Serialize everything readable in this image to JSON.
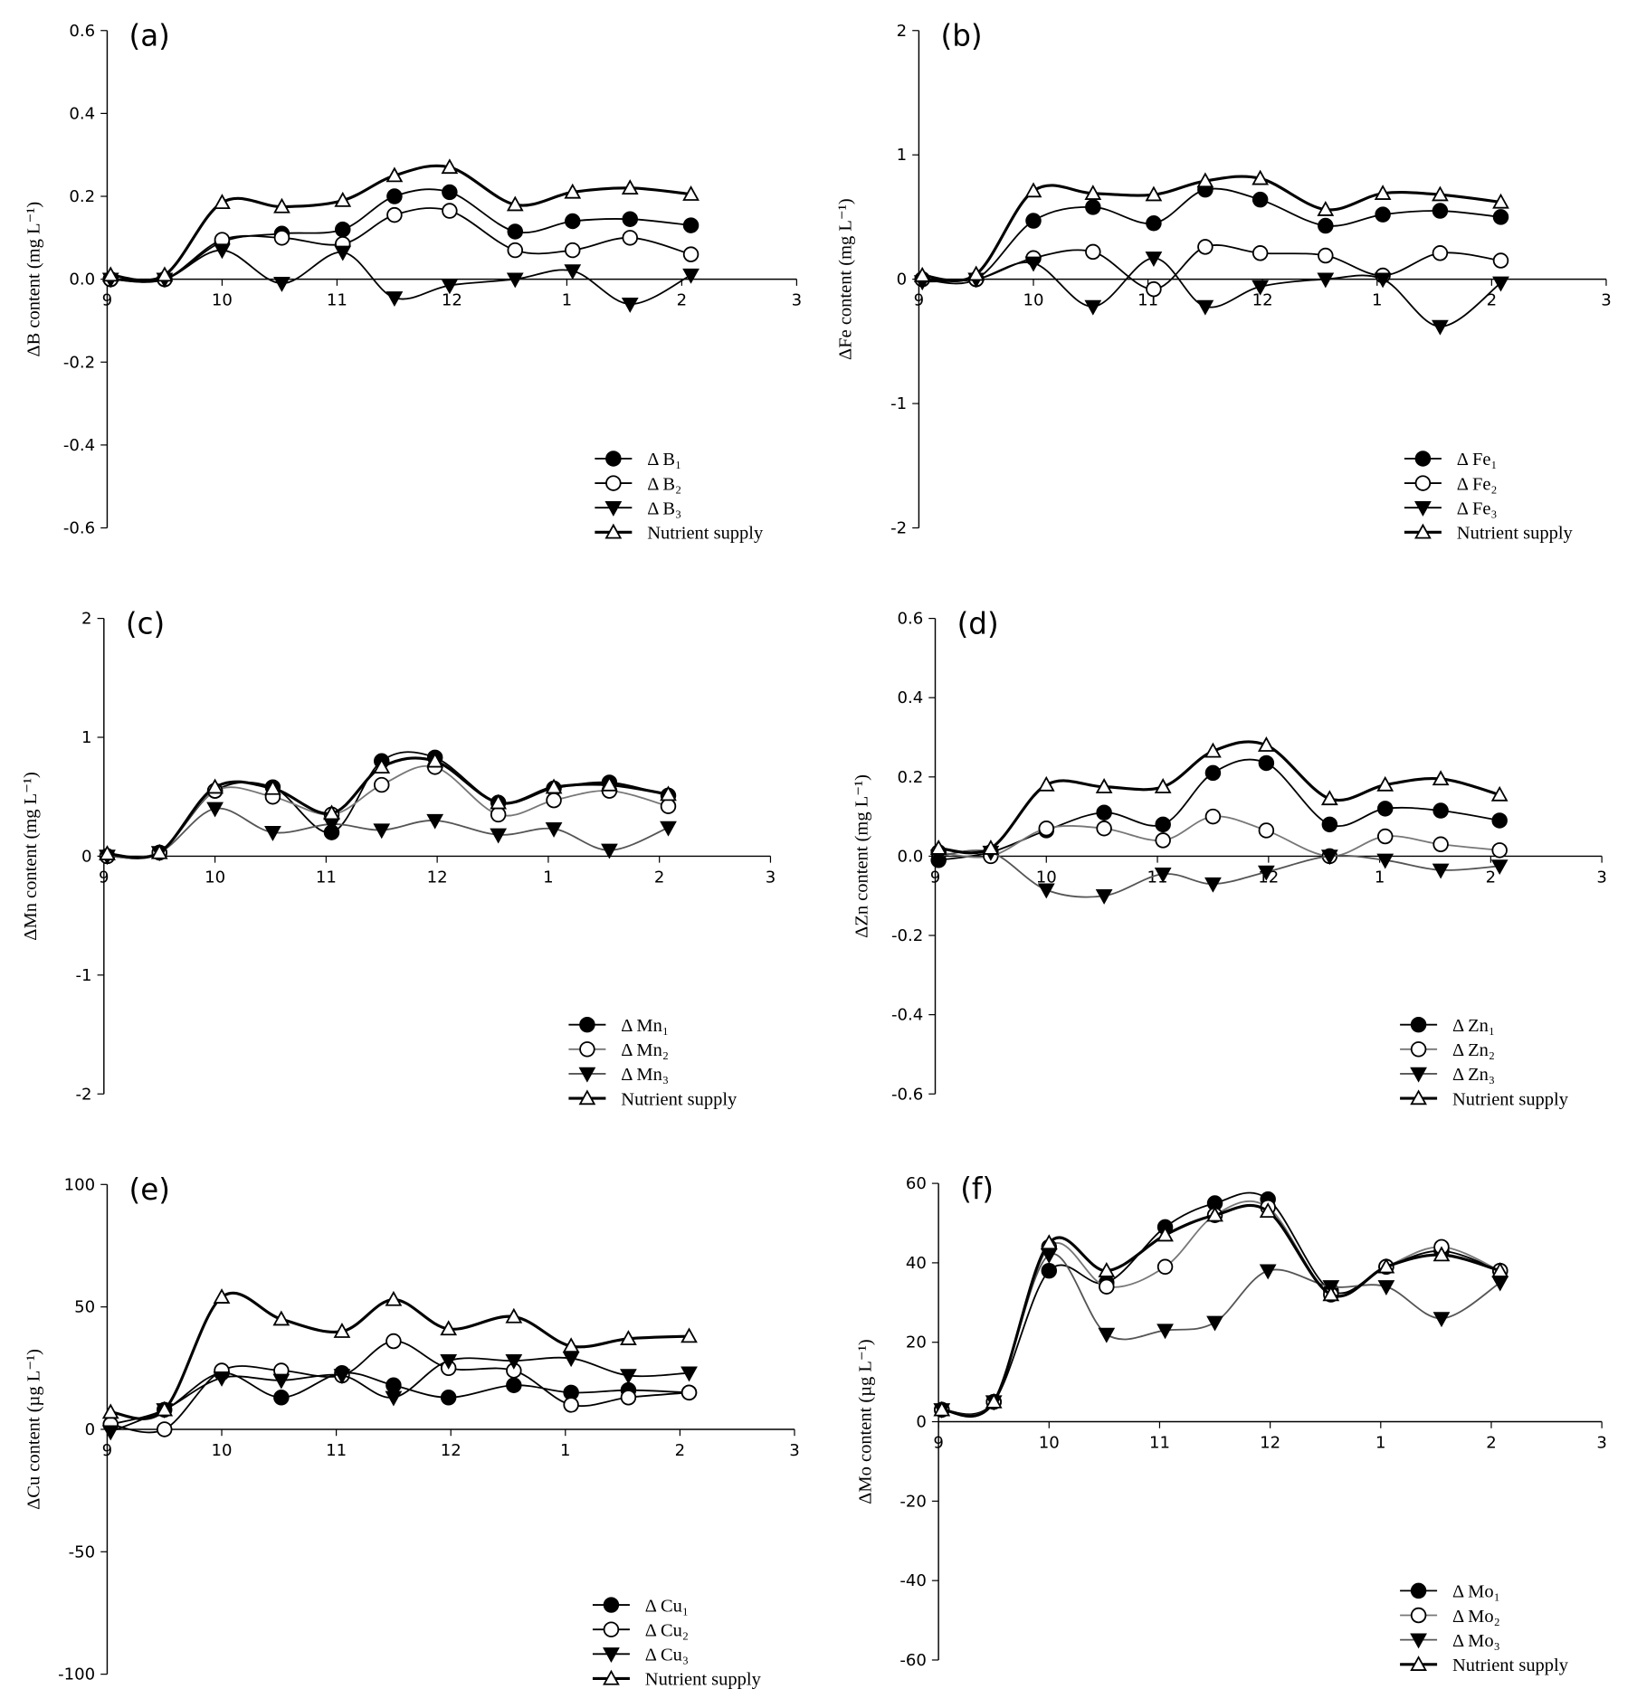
{
  "chart_data": [
    {
      "type": "line",
      "title": "(a)",
      "y_label": "ΔB content (mg L⁻¹)",
      "legend": "lower right",
      "x": [
        9.03,
        9.5,
        10.0,
        10.52,
        11.05,
        11.5,
        11.98,
        12.55,
        13.05,
        13.55,
        14.08
      ],
      "xlim": [
        9,
        15
      ],
      "xticks": [
        9,
        10,
        11,
        12,
        {
          "value": 13,
          "label": "1"
        },
        {
          "value": 14,
          "label": "2"
        },
        {
          "value": 15,
          "label": "3"
        }
      ],
      "ylim": [
        -0.6,
        0.6
      ],
      "yticks": [
        -0.6,
        -0.4,
        -0.2,
        {
          "value": 0,
          "label": "0.0"
        },
        0.2,
        0.4,
        0.6
      ],
      "series": [
        {
          "name": "Δ B₁",
          "color": "#000000",
          "marker": "filled-circle",
          "values": [
            0,
            0,
            0.09,
            0.11,
            0.12,
            0.2,
            0.21,
            0.115,
            0.14,
            0.145,
            0.13
          ]
        },
        {
          "name": "Δ B₂",
          "color": "#000000",
          "marker": "open-circle",
          "values": [
            0,
            0,
            0.095,
            0.1,
            0.085,
            0.155,
            0.165,
            0.07,
            0.07,
            0.1,
            0.06
          ]
        },
        {
          "name": "Δ B₃",
          "color": "#000000",
          "marker": "filled-triangle-down",
          "values": [
            0,
            0,
            0.07,
            -0.01,
            0.065,
            -0.045,
            -0.015,
            0,
            0.02,
            -0.06,
            0.01
          ]
        },
        {
          "name": "Nutrient supply",
          "color": "#000000",
          "marker": "open-triangle-up",
          "values": [
            0.01,
            0.01,
            0.185,
            0.175,
            0.19,
            0.25,
            0.27,
            0.18,
            0.21,
            0.22,
            0.205
          ]
        }
      ]
    },
    {
      "type": "line",
      "title": "(b)",
      "y_label": "ΔFe content (mg L⁻¹)",
      "legend": "lower right",
      "x": [
        9.03,
        9.5,
        10.0,
        10.52,
        11.05,
        11.5,
        11.98,
        12.55,
        13.05,
        13.55,
        14.08
      ],
      "xlim": [
        9,
        15
      ],
      "xticks": [
        9,
        10,
        11,
        12,
        {
          "value": 13,
          "label": "1"
        },
        {
          "value": 14,
          "label": "2"
        },
        {
          "value": 15,
          "label": "3"
        }
      ],
      "ylim": [
        -2,
        2
      ],
      "yticks": [
        -2,
        -1,
        0,
        1,
        2
      ],
      "series": [
        {
          "name": "Δ Fe₁",
          "color": "#000000",
          "marker": "filled-circle",
          "values": [
            0,
            0,
            0.47,
            0.58,
            0.45,
            0.72,
            0.64,
            0.43,
            0.52,
            0.55,
            0.5
          ]
        },
        {
          "name": "Δ Fe₂",
          "color": "#000000",
          "marker": "open-circle",
          "values": [
            0,
            0,
            0.17,
            0.22,
            -0.08,
            0.26,
            0.21,
            0.19,
            0.03,
            0.21,
            0.15
          ]
        },
        {
          "name": "Δ Fe₃",
          "color": "#000000",
          "marker": "filled-triangle-down",
          "values": [
            -0.02,
            0,
            0.13,
            -0.22,
            0.17,
            -0.22,
            -0.06,
            0,
            0,
            -0.38,
            -0.03
          ]
        },
        {
          "name": "Nutrient supply",
          "color": "#000000",
          "marker": "open-triangle-up",
          "values": [
            0.03,
            0.04,
            0.71,
            0.69,
            0.68,
            0.79,
            0.81,
            0.56,
            0.69,
            0.68,
            0.62
          ]
        }
      ]
    },
    {
      "type": "line",
      "title": "(c)",
      "y_label": "ΔMn content (mg L⁻¹)",
      "legend": "lower right",
      "x": [
        9.03,
        9.5,
        10.0,
        10.52,
        11.05,
        11.5,
        11.98,
        12.55,
        13.05,
        13.55,
        14.08
      ],
      "xlim": [
        9,
        15
      ],
      "xticks": [
        9,
        10,
        11,
        12,
        {
          "value": 13,
          "label": "1"
        },
        {
          "value": 14,
          "label": "2"
        },
        {
          "value": 15,
          "label": "3"
        }
      ],
      "ylim": [
        -2,
        2
      ],
      "yticks": [
        -2,
        -1,
        0,
        1,
        2
      ],
      "series": [
        {
          "name": "Δ Mn₁",
          "color": "#000000",
          "marker": "filled-circle",
          "values": [
            0,
            0.03,
            0.55,
            0.58,
            0.2,
            0.8,
            0.83,
            0.45,
            0.57,
            0.62,
            0.51
          ]
        },
        {
          "name": "Δ Mn₂",
          "color": "#777777",
          "marker": "open-circle",
          "values": [
            0,
            0.03,
            0.55,
            0.5,
            0.35,
            0.6,
            0.75,
            0.35,
            0.47,
            0.55,
            0.42
          ]
        },
        {
          "name": "Δ Mn₃",
          "color": "#555555",
          "marker": "filled-triangle-down",
          "values": [
            0,
            0.03,
            0.4,
            0.2,
            0.27,
            0.22,
            0.3,
            0.18,
            0.23,
            0.05,
            0.24
          ]
        },
        {
          "name": "Nutrient supply",
          "color": "#000000",
          "marker": "open-triangle-up",
          "values": [
            0.02,
            0.03,
            0.58,
            0.57,
            0.36,
            0.75,
            0.8,
            0.45,
            0.58,
            0.6,
            0.52
          ]
        }
      ]
    },
    {
      "type": "line",
      "title": "(d)",
      "y_label": "ΔZn content (mg L⁻¹)",
      "legend": "lower right",
      "x": [
        9.03,
        9.5,
        10.0,
        10.52,
        11.05,
        11.5,
        11.98,
        12.55,
        13.05,
        13.55,
        14.08
      ],
      "xlim": [
        9,
        15
      ],
      "xticks": [
        9,
        10,
        11,
        12,
        {
          "value": 13,
          "label": "1"
        },
        {
          "value": 14,
          "label": "2"
        },
        {
          "value": 15,
          "label": "3"
        }
      ],
      "ylim": [
        -0.6,
        0.6
      ],
      "yticks": [
        -0.6,
        -0.4,
        -0.2,
        {
          "value": 0,
          "label": "0.0"
        },
        0.2,
        0.4,
        0.6
      ],
      "series": [
        {
          "name": "Δ Zn₁",
          "color": "#000000",
          "marker": "filled-circle",
          "values": [
            -0.01,
            0.01,
            0.065,
            0.11,
            0.08,
            0.21,
            0.235,
            0.08,
            0.12,
            0.115,
            0.09
          ]
        },
        {
          "name": "Δ Zn₂",
          "color": "#777777",
          "marker": "open-circle",
          "values": [
            0.01,
            0,
            0.07,
            0.07,
            0.04,
            0.1,
            0.065,
            0,
            0.05,
            0.03,
            0.015
          ]
        },
        {
          "name": "Δ Zn₃",
          "color": "#555555",
          "marker": "filled-triangle-down",
          "values": [
            0,
            0.01,
            -0.085,
            -0.1,
            -0.045,
            -0.07,
            -0.04,
            0,
            -0.01,
            -0.035,
            -0.025
          ]
        },
        {
          "name": "Nutrient supply",
          "color": "#000000",
          "marker": "open-triangle-up",
          "values": [
            0.02,
            0.02,
            0.18,
            0.175,
            0.175,
            0.265,
            0.28,
            0.145,
            0.18,
            0.195,
            0.155
          ]
        }
      ]
    },
    {
      "type": "line",
      "title": "(e)",
      "y_label": "ΔCu content (µg L⁻¹)",
      "legend": "lower right",
      "x": [
        9.03,
        9.5,
        10.0,
        10.52,
        11.05,
        11.5,
        11.98,
        12.55,
        13.05,
        13.55,
        14.08
      ],
      "xlim": [
        9,
        15
      ],
      "xticks": [
        9,
        10,
        11,
        12,
        {
          "value": 13,
          "label": "1"
        },
        {
          "value": 14,
          "label": "2"
        },
        {
          "value": 15,
          "label": "3"
        }
      ],
      "ylim": [
        -100,
        100
      ],
      "yticks": [
        -100,
        -50,
        0,
        50,
        100
      ],
      "series": [
        {
          "name": "Δ Cu₁",
          "color": "#000000",
          "marker": "filled-circle",
          "values": [
            2,
            8,
            23,
            13,
            23,
            18,
            13,
            18,
            15,
            16,
            15
          ]
        },
        {
          "name": "Δ Cu₂",
          "color": "#000000",
          "marker": "open-circle",
          "values": [
            2,
            0,
            24,
            24,
            22,
            36,
            25,
            24,
            10,
            13,
            15
          ]
        },
        {
          "name": "Δ Cu₃",
          "color": "#000000",
          "marker": "filled-triangle-down",
          "values": [
            -1,
            8,
            21,
            20,
            22,
            13,
            28,
            28,
            29,
            22,
            23
          ]
        },
        {
          "name": "Nutrient supply",
          "color": "#000000",
          "marker": "open-triangle-up",
          "values": [
            7,
            8,
            54,
            45,
            40,
            53,
            41,
            46,
            34,
            37,
            38
          ]
        }
      ]
    },
    {
      "type": "line",
      "title": "(f)",
      "y_label": "ΔMo content (µg L⁻¹)",
      "legend": "lower right",
      "x": [
        9.03,
        9.5,
        10.0,
        10.52,
        11.05,
        11.5,
        11.98,
        12.55,
        13.05,
        13.55,
        14.08
      ],
      "xlim": [
        9,
        15
      ],
      "xticks": [
        9,
        10,
        11,
        12,
        {
          "value": 13,
          "label": "1"
        },
        {
          "value": 14,
          "label": "2"
        },
        {
          "value": 15,
          "label": "3"
        }
      ],
      "ylim": [
        -60,
        60
      ],
      "yticks": [
        -60,
        -40,
        -20,
        0,
        20,
        40,
        60
      ],
      "series": [
        {
          "name": "Δ Mo₁",
          "color": "#000000",
          "marker": "filled-circle",
          "values": [
            3,
            5,
            38,
            35,
            49,
            55,
            56,
            33,
            39,
            43,
            38
          ]
        },
        {
          "name": "Δ Mo₂",
          "color": "#777777",
          "marker": "open-circle",
          "values": [
            3,
            5,
            44,
            34,
            39,
            52,
            54,
            32,
            39,
            44,
            38
          ]
        },
        {
          "name": "Δ Mo₃",
          "color": "#555555",
          "marker": "filled-triangle-down",
          "values": [
            3,
            5,
            42,
            22,
            23,
            25,
            38,
            34,
            34,
            26,
            35
          ]
        },
        {
          "name": "Nutrient supply",
          "color": "#000000",
          "marker": "open-triangle-up",
          "values": [
            3,
            5,
            45,
            38,
            47,
            52,
            53,
            32,
            39,
            42,
            38
          ]
        }
      ]
    }
  ]
}
